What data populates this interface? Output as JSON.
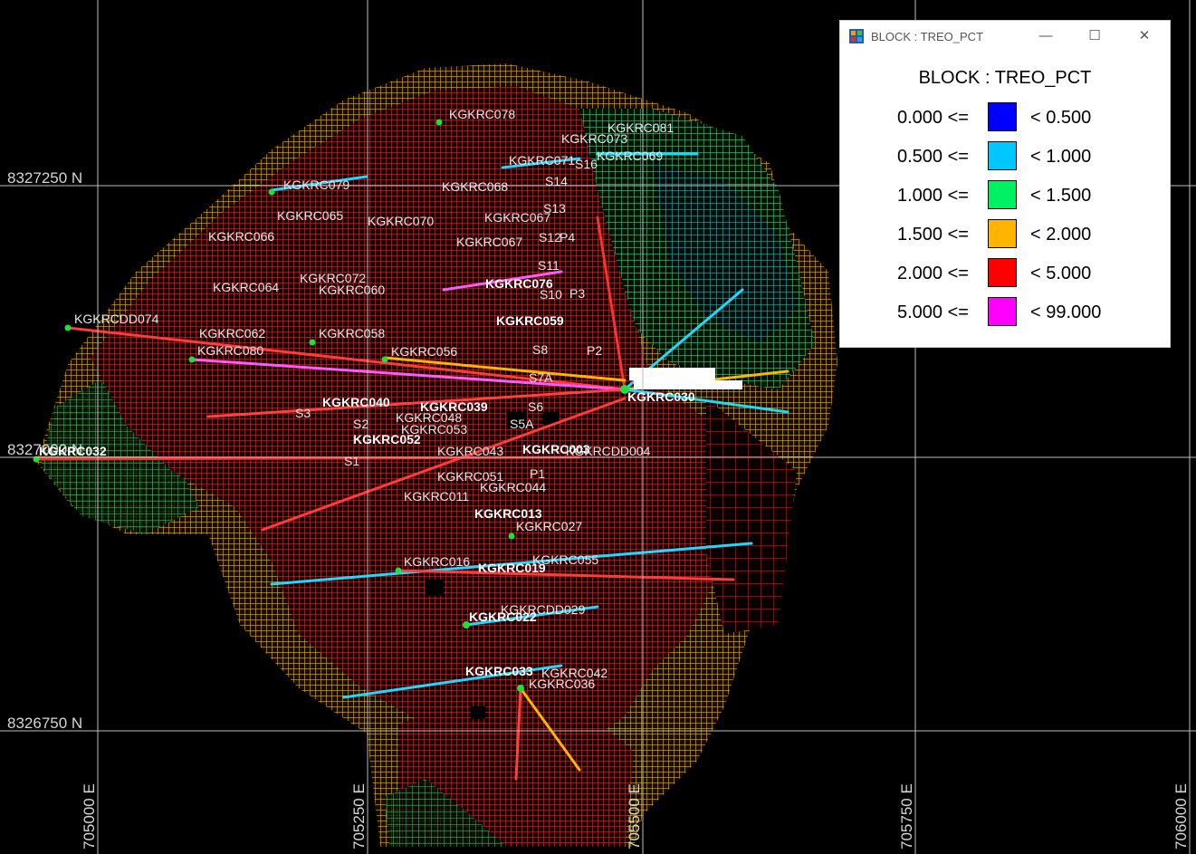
{
  "coordinates": {
    "northings": [
      "8327250 N",
      "8327000 N",
      "8326750 N"
    ],
    "eastings": [
      "705000 E",
      "705250 E",
      "705500 E",
      "705750 E",
      "706000 E"
    ]
  },
  "drillholes": [
    "KGKRC078",
    "KGKRC081",
    "KGKRC073",
    "KGKRC069",
    "KGKRC071",
    "S16",
    "S14",
    "KGKRC079",
    "KGKRC068",
    "S13",
    "KGKRC065",
    "KGKRC070",
    "KGKRC067",
    "KGKRC066",
    "KGKRC067",
    "S12",
    "P4",
    "S11",
    "KGKRC072",
    "KGKRC064",
    "KGKRC060",
    "KGKRC076",
    "S10",
    "P3",
    "KGKRCDD074",
    "KGKRC062",
    "KGKRC058",
    "KGKRC059",
    "KGKRC080",
    "KGKRC056",
    "S8",
    "P2",
    "S7A",
    "KGKRC030",
    "KGKRC040",
    "KGKRC039",
    "S6",
    "KGKRC048",
    "KGKRC053",
    "S5A",
    "S3",
    "S2",
    "KGKRC052",
    "KGKRC043",
    "KGKRC003",
    "KGKRCDD004",
    "KGKRC032",
    "S1",
    "KGKRC051",
    "P1",
    "KGKRC044",
    "KGKRC011",
    "KGKRC013",
    "KGKRC027",
    "KGKRC016",
    "KGKRC055",
    "KGKRC019",
    "KGKRCDD029",
    "KGKRC022",
    "KGKRC033",
    "KGKRC042",
    "KGKRC036"
  ],
  "legend": {
    "window_title": "BLOCK : TREO_PCT",
    "heading": "BLOCK : TREO_PCT",
    "buttons": {
      "minimize": "—",
      "maximize": "☐",
      "close": "✕"
    },
    "rows": [
      {
        "low": "0.000 <=",
        "high": "< 0.500",
        "color": "#0000ff"
      },
      {
        "low": "0.500 <=",
        "high": "< 1.000",
        "color": "#00c8ff"
      },
      {
        "low": "1.000 <=",
        "high": "< 1.500",
        "color": "#00f064"
      },
      {
        "low": "1.500 <=",
        "high": "< 2.000",
        "color": "#ffb400"
      },
      {
        "low": "2.000 <=",
        "high": "< 5.000",
        "color": "#ff0000"
      },
      {
        "low": "5.000 <=",
        "high": "< 99.000",
        "color": "#ff00ff"
      }
    ]
  }
}
